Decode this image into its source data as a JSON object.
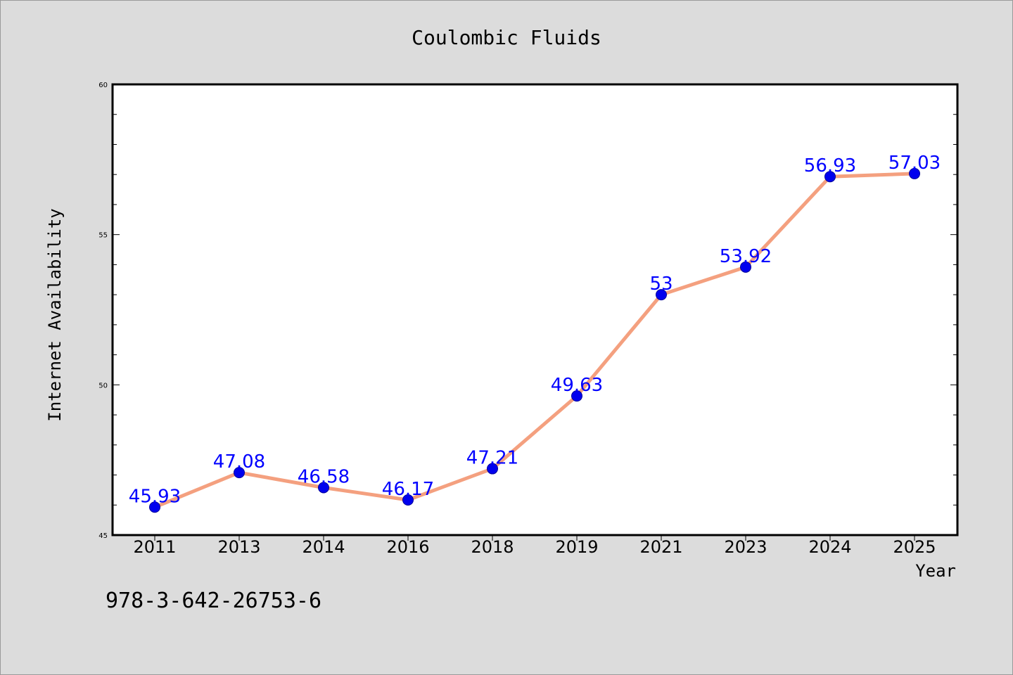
{
  "chart_data": {
    "type": "line",
    "title": "Coulombic Fluids",
    "xlabel": "Year",
    "ylabel": "Internet Availability",
    "categories": [
      "2011",
      "2013",
      "2014",
      "2016",
      "2018",
      "2019",
      "2021",
      "2023",
      "2024",
      "2025"
    ],
    "values": [
      45.93,
      47.08,
      46.58,
      46.17,
      47.21,
      49.63,
      53,
      53.92,
      56.93,
      57.03
    ],
    "point_labels": [
      "45.93",
      "47.08",
      "46.58",
      "46.17",
      "47.21",
      "49.63",
      "53",
      "53.92",
      "56.93",
      "57.03"
    ],
    "ylim": [
      45,
      60
    ],
    "yticks": [
      "45",
      "50",
      "55",
      "60"
    ],
    "grid": false,
    "line_color": "#f4a07f",
    "marker_color": "#0000ee",
    "label_color": "#0000ff"
  },
  "footer_text": "978-3-642-26753-6"
}
